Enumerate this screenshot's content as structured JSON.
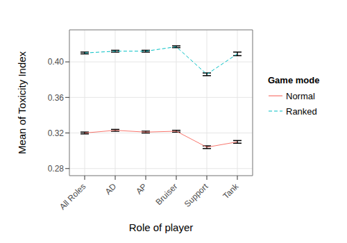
{
  "chart_data": {
    "type": "line",
    "x_label": "Role of player",
    "y_label": "Mean of Toxicity Index",
    "legend_title": "Game mode",
    "legend": "right",
    "grid": true,
    "categories": [
      "All Roles",
      "AD",
      "AP",
      "Bruiser",
      "Support",
      "Tank"
    ],
    "ylim": [
      0.272,
      0.436
    ],
    "yticks": [
      0.28,
      0.32,
      0.36,
      {
        "value": 0.4,
        "label": "0.40"
      }
    ],
    "series": [
      {
        "name": "Normal",
        "color": "#F8766D",
        "line_style": "solid",
        "values": [
          0.32,
          0.323,
          0.321,
          0.322,
          0.304,
          0.31
        ],
        "errors": [
          0.001,
          0.001,
          0.001,
          0.001,
          0.0015,
          0.0015
        ]
      },
      {
        "name": "Ranked",
        "color": "#00BFC4",
        "line_style": "dashed",
        "values": [
          0.41,
          0.412,
          0.412,
          0.417,
          0.386,
          0.409
        ],
        "errors": [
          0.001,
          0.001,
          0.001,
          0.001,
          0.0015,
          0.002
        ]
      }
    ]
  }
}
